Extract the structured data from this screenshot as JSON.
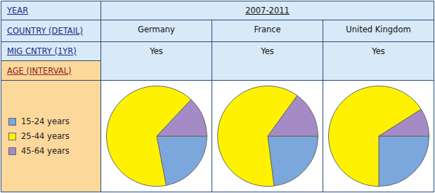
{
  "table": {
    "labels": [
      "YEAR",
      "COUNTRY (DETAIL)",
      "MIG CNTRY (1YR)",
      "AGE (INTERVAL)"
    ],
    "year": "2007-2011",
    "columns": [
      {
        "country": "Germany",
        "mig_cntry": "Yes"
      },
      {
        "country": "France",
        "mig_cntry": "Yes"
      },
      {
        "country": "United Kingdom",
        "mig_cntry": "Yes"
      }
    ]
  },
  "key": {
    "categories": [
      "15-24 years",
      "25-44 years",
      "45-64 years"
    ],
    "colors": [
      "#7ba7dc",
      "#fff200",
      "#a58bc6"
    ]
  },
  "chart_data": [
    {
      "type": "pie",
      "values": [
        22,
        65,
        13
      ]
    },
    {
      "type": "pie",
      "values": [
        23,
        62,
        15
      ]
    },
    {
      "type": "pie",
      "values": [
        25,
        66,
        9
      ]
    }
  ]
}
